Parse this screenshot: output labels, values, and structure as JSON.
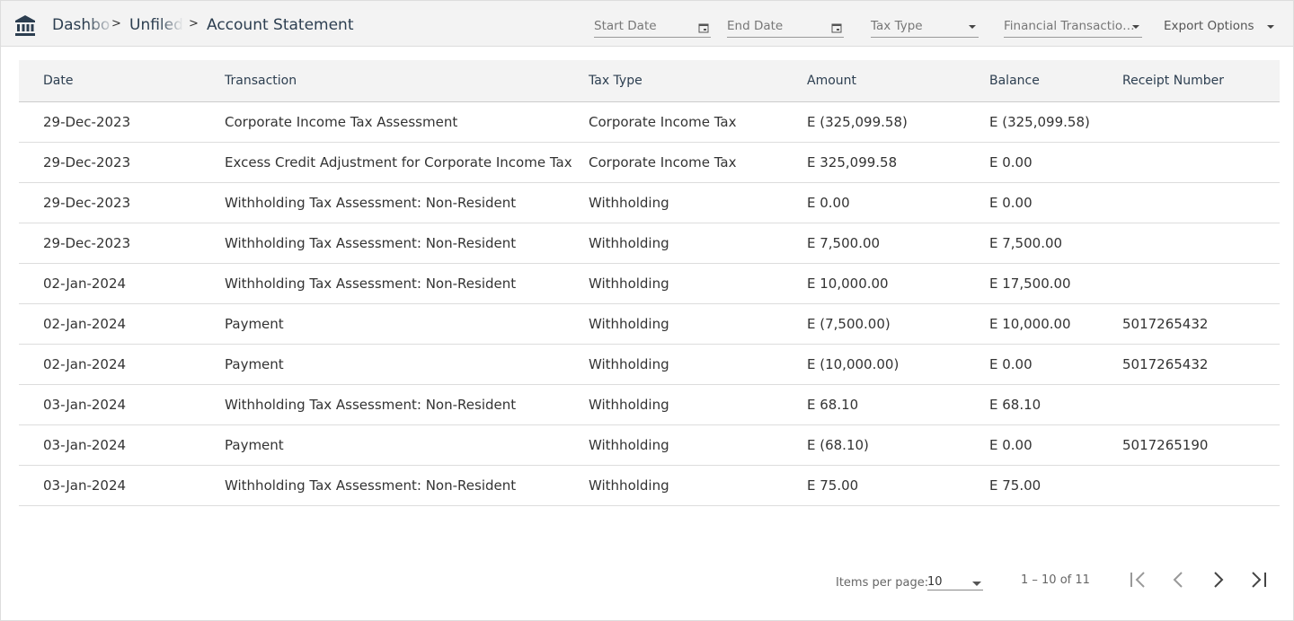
{
  "breadcrumb": {
    "items": [
      "Dashbo",
      "Unfiled",
      "Account Statement"
    ]
  },
  "filters": {
    "start_date": "Start Date",
    "end_date": "End Date",
    "tax_type": "Tax Type",
    "financial_transactions": "Financial Transactio…",
    "export_options": "Export Options"
  },
  "table": {
    "columns": [
      "Date",
      "Transaction",
      "Tax Type",
      "Amount",
      "Balance",
      "Receipt Number"
    ],
    "rows": [
      [
        "29-Dec-2023",
        "Corporate Income Tax Assessment",
        "Corporate Income Tax",
        "E (325,099.58)",
        "E (325,099.58)",
        ""
      ],
      [
        "29-Dec-2023",
        "Excess Credit Adjustment for Corporate Income Tax",
        "Corporate Income Tax",
        "E 325,099.58",
        "E 0.00",
        ""
      ],
      [
        "29-Dec-2023",
        "Withholding Tax Assessment: Non-Resident",
        "Withholding",
        "E 0.00",
        "E 0.00",
        ""
      ],
      [
        "29-Dec-2023",
        "Withholding Tax Assessment: Non-Resident",
        "Withholding",
        "E 7,500.00",
        "E 7,500.00",
        ""
      ],
      [
        "02-Jan-2024",
        "Withholding Tax Assessment: Non-Resident",
        "Withholding",
        "E 10,000.00",
        "E 17,500.00",
        ""
      ],
      [
        "02-Jan-2024",
        "Payment",
        "Withholding",
        "E (7,500.00)",
        "E 10,000.00",
        "5017265432"
      ],
      [
        "02-Jan-2024",
        "Payment",
        "Withholding",
        "E (10,000.00)",
        "E 0.00",
        "5017265432"
      ],
      [
        "03-Jan-2024",
        "Withholding Tax Assessment: Non-Resident",
        "Withholding",
        "E 68.10",
        "E 68.10",
        ""
      ],
      [
        "03-Jan-2024",
        "Payment",
        "Withholding",
        "E (68.10)",
        "E 0.00",
        "5017265190"
      ],
      [
        "03-Jan-2024",
        "Withholding Tax Assessment: Non-Resident",
        "Withholding",
        "E 75.00",
        "E 75.00",
        ""
      ]
    ]
  },
  "paginator": {
    "items_per_page_label": "Items per page:",
    "page_size": "10",
    "range": "1 – 10 of 11"
  }
}
